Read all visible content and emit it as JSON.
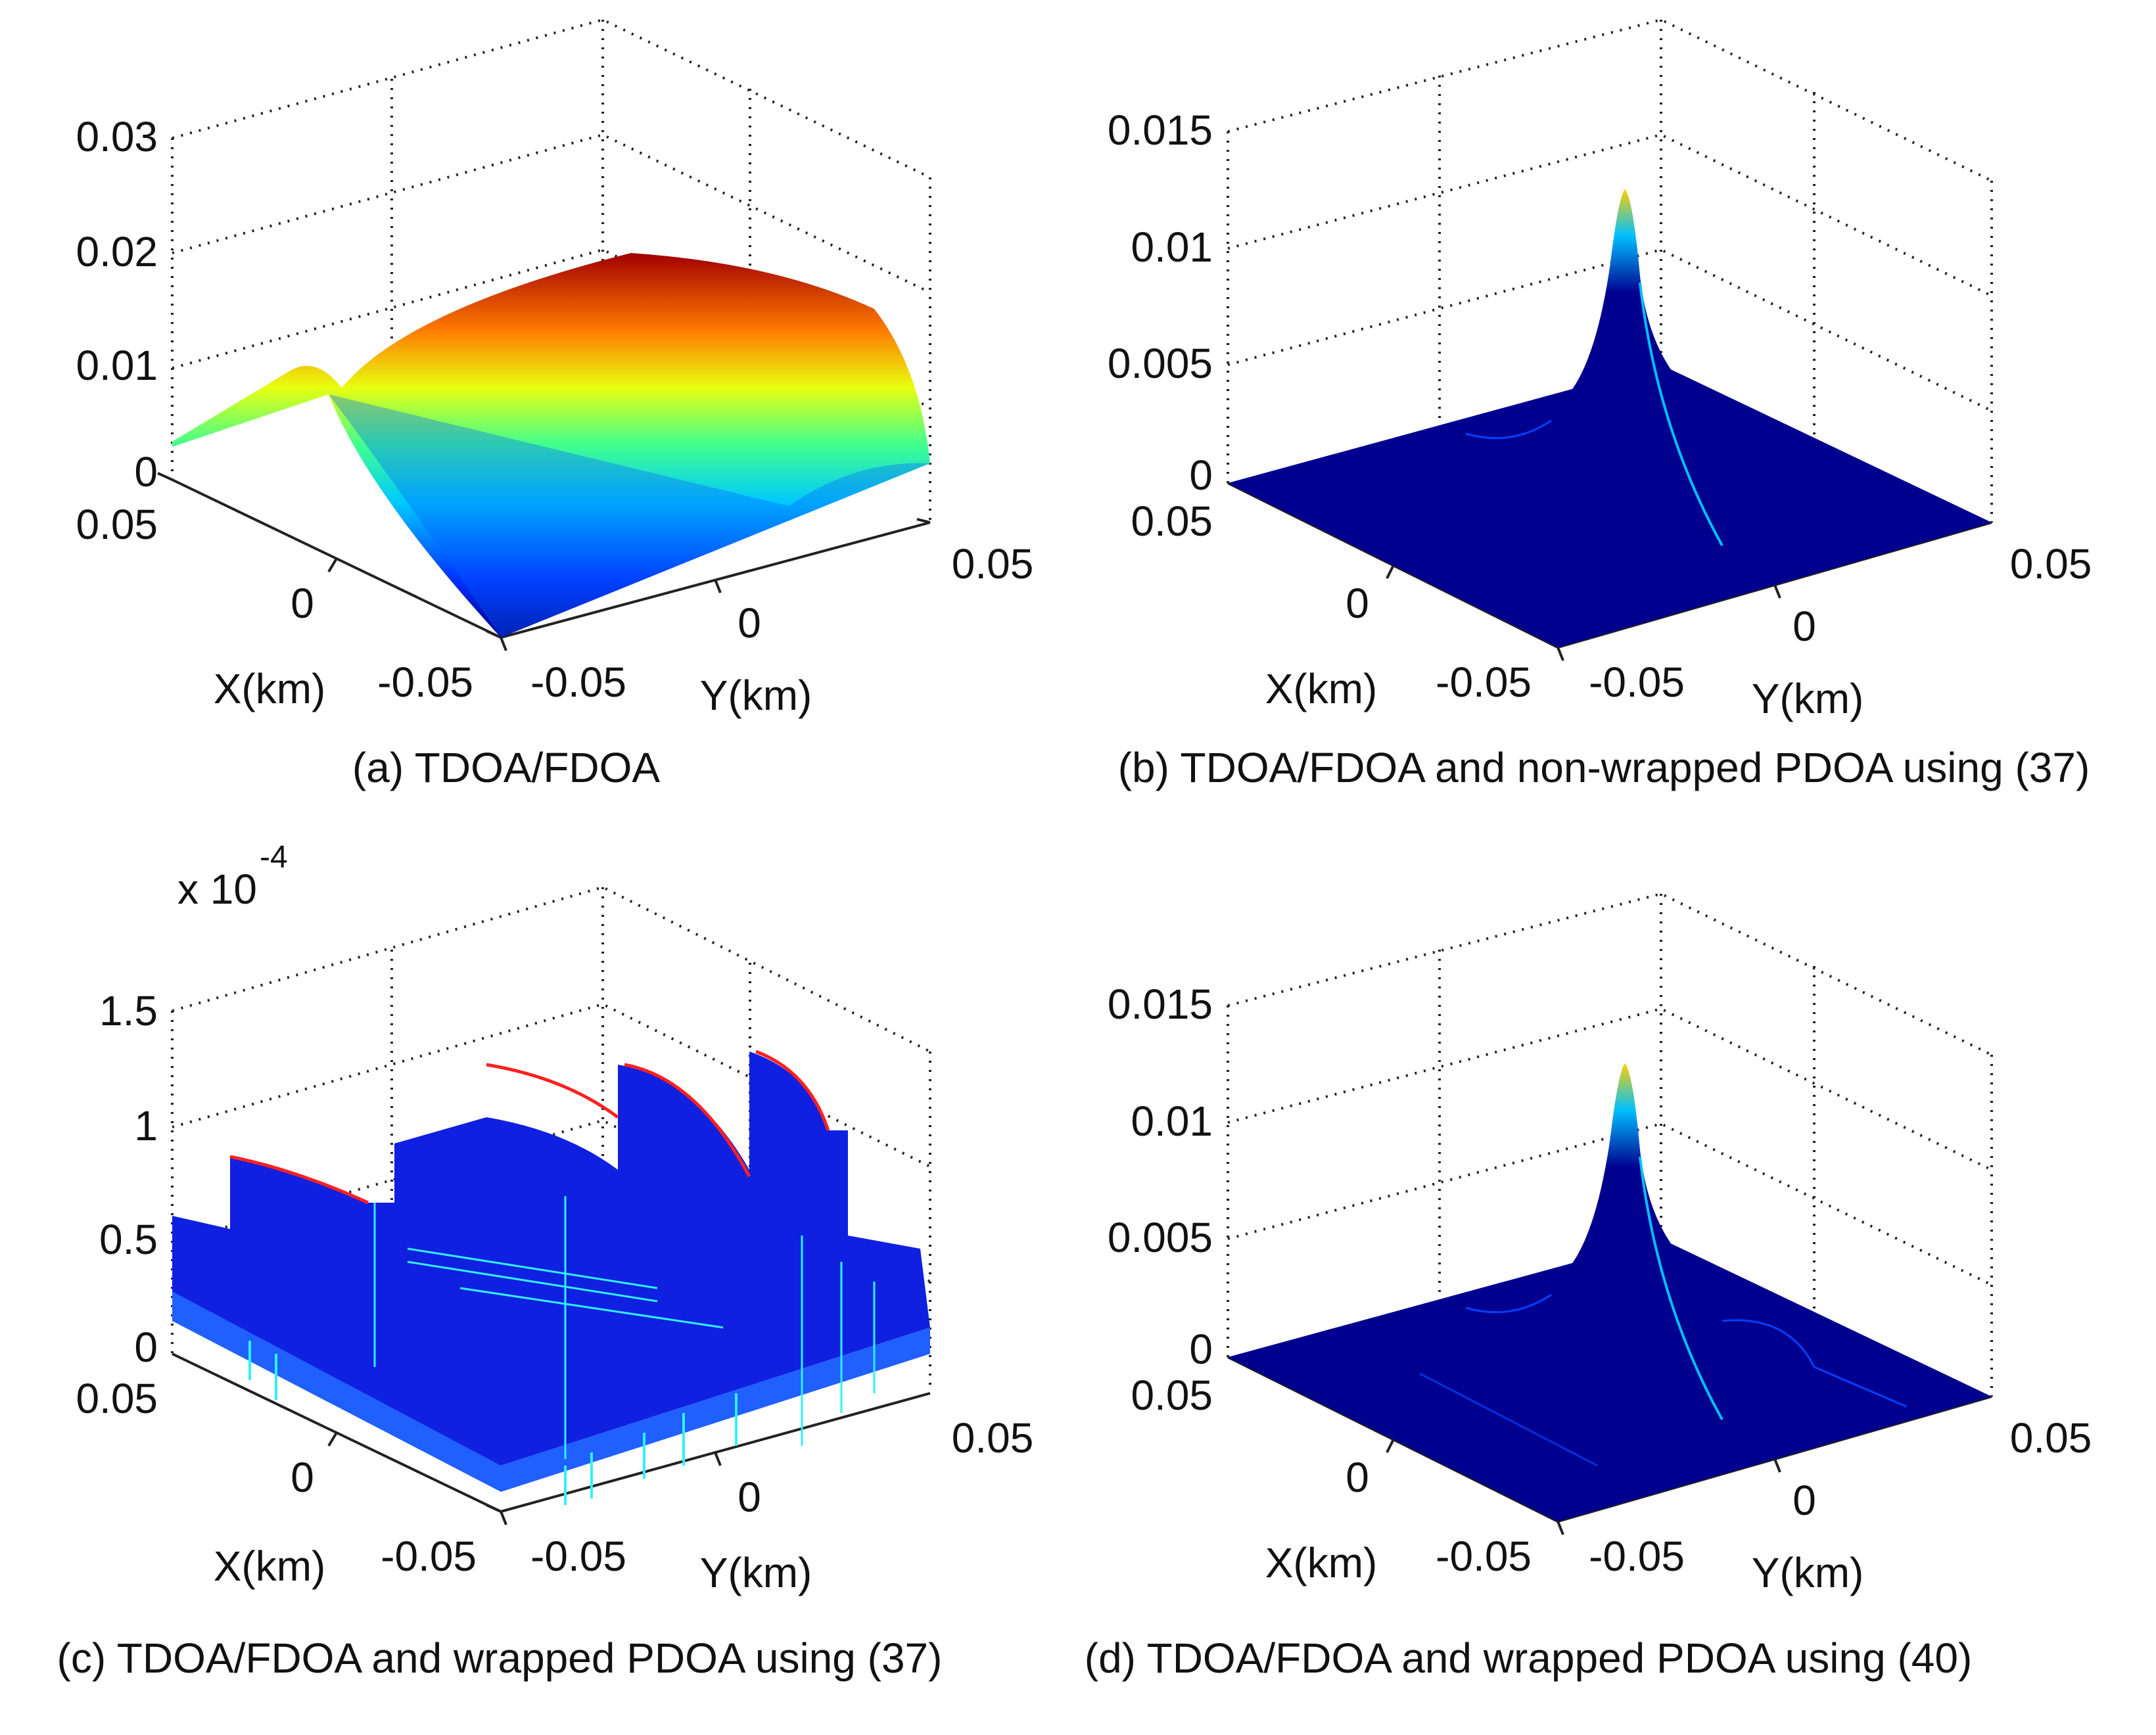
{
  "chart_data": [
    {
      "type": "surface",
      "id": "a",
      "caption": "(a) TDOA/FDOA",
      "xlabel": "X(km)",
      "ylabel": "Y(km)",
      "xticks": [
        "0.05",
        "0",
        "-0.05"
      ],
      "yticks": [
        "-0.05",
        "0",
        "0.05"
      ],
      "zticks": [
        "0",
        "0.01",
        "0.02",
        "0.03"
      ],
      "zlim": [
        0,
        0.03
      ],
      "exponent": "",
      "peak": 0.02,
      "surface": "smooth ridge"
    },
    {
      "type": "surface",
      "id": "b",
      "caption": "(b) TDOA/FDOA and non-wrapped PDOA using (37)",
      "xlabel": "X(km)",
      "ylabel": "Y(km)",
      "xticks": [
        "0.05",
        "0",
        "-0.05"
      ],
      "yticks": [
        "-0.05",
        "0",
        "0.05"
      ],
      "zticks": [
        "0",
        "0.005",
        "0.01",
        "0.015"
      ],
      "zlim": [
        0,
        0.015
      ],
      "exponent": "",
      "peak": 0.0125,
      "surface": "single sharp peak"
    },
    {
      "type": "surface",
      "id": "c",
      "caption": "(c) TDOA/FDOA and wrapped PDOA using (37)",
      "xlabel": "X(km)",
      "ylabel": "Y(km)",
      "xticks": [
        "0.05",
        "0",
        "-0.05"
      ],
      "yticks": [
        "-0.05",
        "0",
        "0.05"
      ],
      "zticks": [
        "0",
        "0.5",
        "1",
        "1.5"
      ],
      "zlim": [
        0,
        1.5
      ],
      "exponent_base": "x 10",
      "exponent_power": "-4",
      "peak": 1.25,
      "surface": "jagged multi-modal"
    },
    {
      "type": "surface",
      "id": "d",
      "caption": "(d) TDOA/FDOA and wrapped PDOA using (40)",
      "xlabel": "X(km)",
      "ylabel": "Y(km)",
      "xticks": [
        "0.05",
        "0",
        "-0.05"
      ],
      "yticks": [
        "-0.05",
        "0",
        "0.05"
      ],
      "zticks": [
        "0",
        "0.005",
        "0.01",
        "0.015"
      ],
      "zlim": [
        0,
        0.015
      ],
      "exponent": "",
      "peak": 0.0125,
      "surface": "single sharp peak"
    }
  ]
}
